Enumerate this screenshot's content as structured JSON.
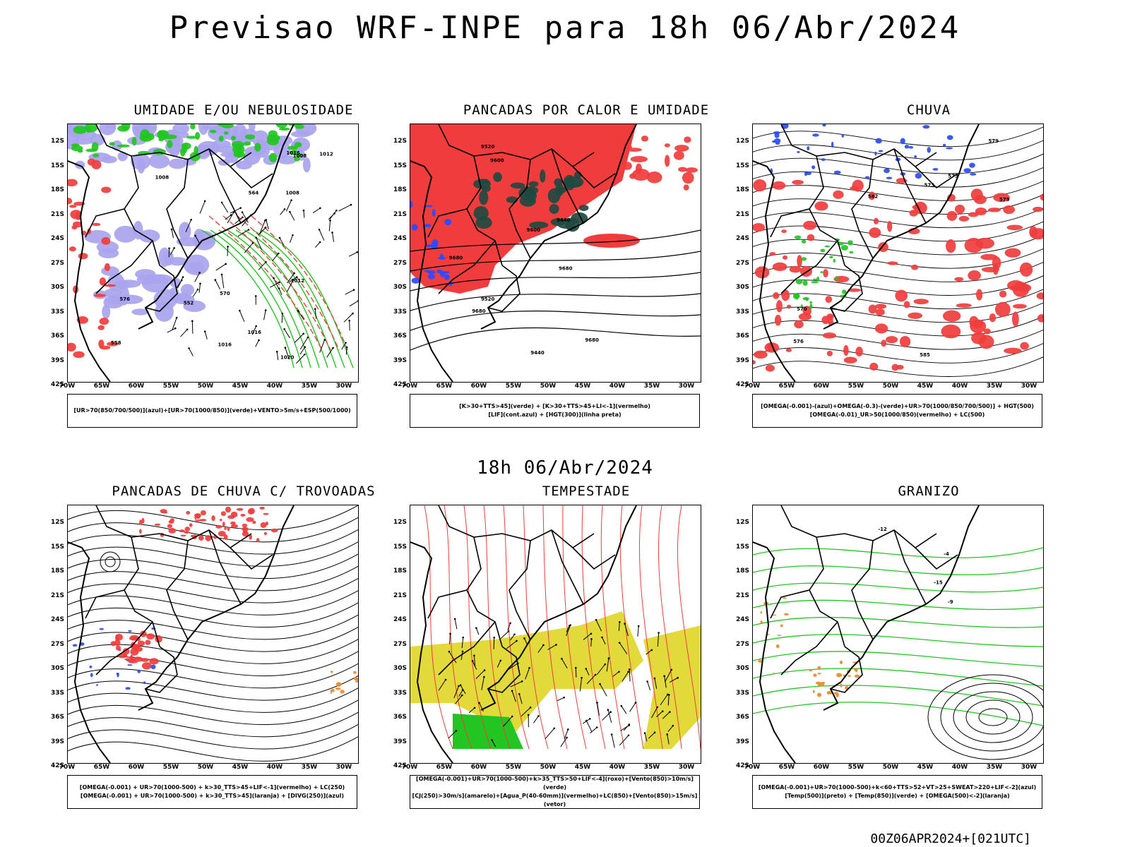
{
  "main_title": "Previsao WRF-INPE  para 18h 06/Abr/2024",
  "mid_title": "18h 06/Abr/2024",
  "footer": "00Z06APR2024+[021UTC]",
  "lat_ticks": [
    "12S",
    "15S",
    "18S",
    "21S",
    "24S",
    "27S",
    "30S",
    "33S",
    "36S",
    "39S",
    "42S"
  ],
  "lon_ticks": [
    "70W",
    "65W",
    "60W",
    "55W",
    "50W",
    "45W",
    "40W",
    "35W",
    "30W"
  ],
  "colors": {
    "red": "#f03c3c",
    "green": "#22c522",
    "blue": "#2a4bff",
    "lavender": "#a9a4ee",
    "darkteal": "#1f4a40",
    "yellow": "#e2d93a",
    "orange": "#ee8a2a"
  },
  "panels": [
    {
      "title": "UMIDADE E/OU NEBULOSIDADE",
      "legend1": "[UR>70(850/700/500)](azul)+[UR>70(1000/850)](verde)+VENTO>5m/s+ESP(500/1000)",
      "legend2": ""
    },
    {
      "title": "PANCADAS POR CALOR E UMIDADE",
      "legend1": "[K>30+TTS>45](verde) + [K>30+TTS>45+LI<-1](vermelho)",
      "legend2": "[LIF](cont.azul) + [HGT(300)](linha preta)"
    },
    {
      "title": "CHUVA",
      "legend1": "[OMEGA(-0.001)-(azul)+OMEGA(-0.3)-(verde)+UR>70(1000/850/700/500)] + HGT(500)",
      "legend2": "[OMEGA(-0.01)_UR>50(1000/850)(vermelho) + LC(500)"
    },
    {
      "title": "PANCADAS DE CHUVA C/ TROVOADAS",
      "legend1": "[OMEGA(-0.001) + UR>70(1000-500) + k>30_TTS>45+LIF<-1](vermelho) + LC(250)",
      "legend2": "[OMEGA(-0.001) + UR>70(1000-500) + k>30_TTS>45](laranja) + [DIVG(250)](azul)"
    },
    {
      "title": "TEMPESTADE",
      "legend1": "[OMEGA(-0.001)+UR>70(1000-500)+k>35_TTS>50+LIF<-4](roxo)+[Vento(850)>10m/s](verde)",
      "legend2": "[CJ(250)>30m/s](amarelo)+[Agua_P(40-60mm)](vermelho)+LC(850)+[Vento(850)>15m/s](vetor)"
    },
    {
      "title": "GRANIZO",
      "legend1": "[OMEGA(-0.001)+UR>70(1000-500)+k<60+TTS>52+VT>25+SWEAT>220+LIF<-2](azul)",
      "legend2": "[Temp(500)](preto) + [Temp(850)](verde) + [OMEGA(500)<-2](laranja)"
    }
  ],
  "contour_labels": {
    "p1": [
      "1008",
      "1008",
      "1012",
      "1012",
      "1008",
      "1016",
      "1016",
      "1020",
      "1016",
      "576",
      "570",
      "564",
      "558",
      "552"
    ],
    "p2": [
      "9680",
      "9680",
      "9680",
      "9680",
      "9600",
      "9520",
      "9440",
      "9600",
      "9520",
      "9440"
    ],
    "p3": [
      "585",
      "582",
      "579",
      "579",
      "576",
      "573",
      "573",
      "570"
    ],
    "p6": [
      "-9",
      "-15",
      "-12",
      "-4"
    ]
  }
}
